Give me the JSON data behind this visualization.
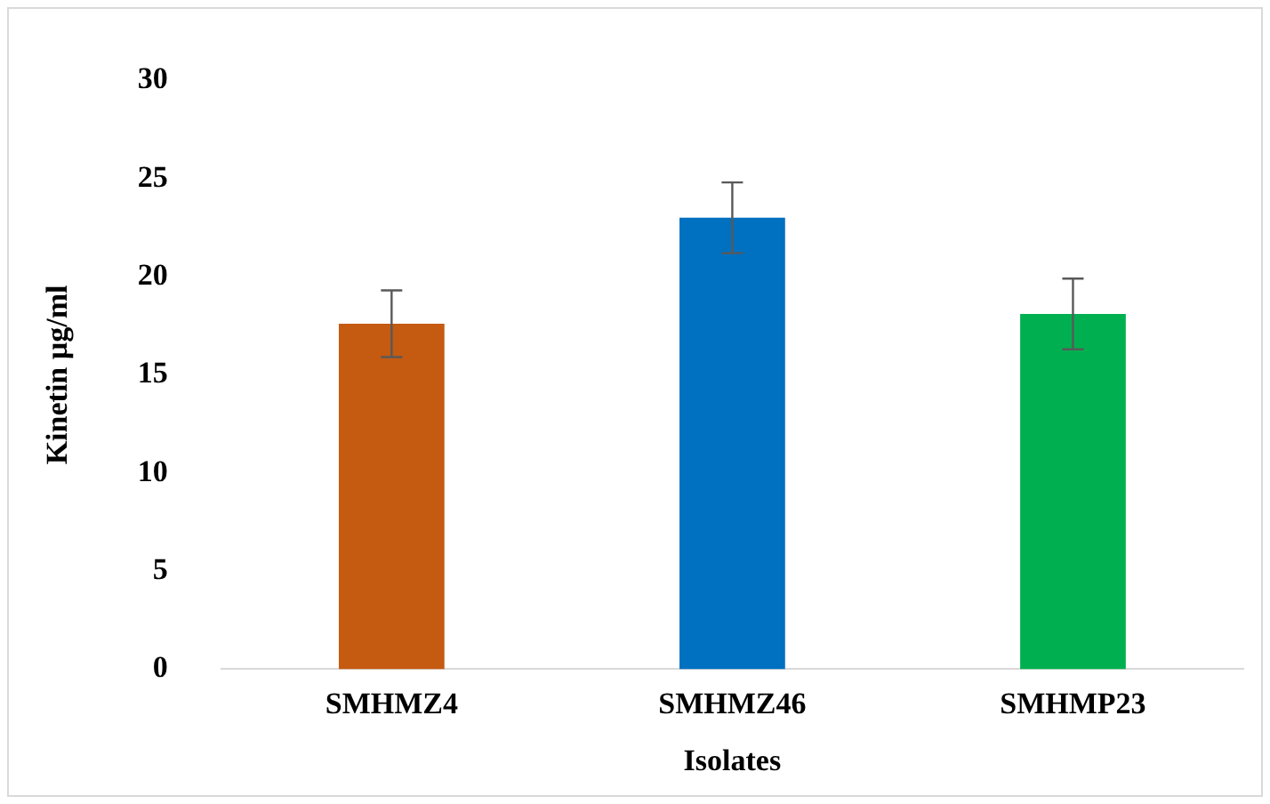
{
  "chart_data": {
    "type": "bar",
    "xlabel": "Isolates",
    "ylabel": "Kinetin µg/ml",
    "categories": [
      "SMHMZ4",
      "SMHMZ46",
      "SMHMP23"
    ],
    "values": [
      17.6,
      23.0,
      18.1
    ],
    "colors": [
      "#c55a11",
      "#0070c0",
      "#00b050"
    ],
    "errors": [
      1.7,
      1.8,
      1.8
    ],
    "ylim": [
      0,
      30
    ],
    "yticks": [
      0,
      5,
      10,
      15,
      20,
      25,
      30
    ],
    "grid": false,
    "legend": false
  }
}
